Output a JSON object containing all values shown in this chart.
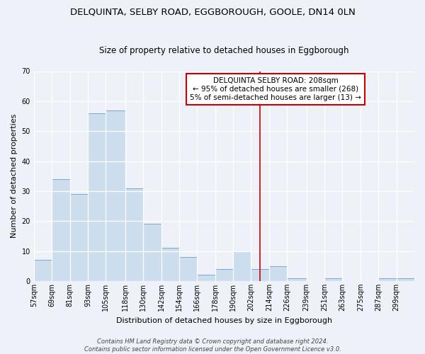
{
  "title": "DELQUINTA, SELBY ROAD, EGGBOROUGH, GOOLE, DN14 0LN",
  "subtitle": "Size of property relative to detached houses in Eggborough",
  "xlabel": "Distribution of detached houses by size in Eggborough",
  "ylabel": "Number of detached properties",
  "bar_labels": [
    "57sqm",
    "69sqm",
    "81sqm",
    "93sqm",
    "105sqm",
    "118sqm",
    "130sqm",
    "142sqm",
    "154sqm",
    "166sqm",
    "178sqm",
    "190sqm",
    "202sqm",
    "214sqm",
    "226sqm",
    "239sqm",
    "251sqm",
    "263sqm",
    "275sqm",
    "287sqm",
    "299sqm"
  ],
  "bar_values": [
    7,
    34,
    29,
    56,
    57,
    31,
    19,
    11,
    8,
    2,
    4,
    10,
    4,
    5,
    1,
    0,
    1,
    0,
    0,
    1,
    1
  ],
  "bin_edges": [
    57,
    69,
    81,
    93,
    105,
    118,
    130,
    142,
    154,
    166,
    178,
    190,
    202,
    214,
    226,
    239,
    251,
    263,
    275,
    287,
    299,
    311
  ],
  "bar_color": "#ccdded",
  "bar_edgecolor": "#7aaac8",
  "vline_x": 208,
  "vline_color": "#cc0000",
  "ylim": [
    0,
    70
  ],
  "yticks": [
    0,
    10,
    20,
    30,
    40,
    50,
    60,
    70
  ],
  "annotation_title": "DELQUINTA SELBY ROAD: 208sqm",
  "annotation_line1": "← 95% of detached houses are smaller (268)",
  "annotation_line2": "5% of semi-detached houses are larger (13) →",
  "annotation_box_edgecolor": "#cc0000",
  "annotation_box_facecolor": "#ffffff",
  "footnote1": "Contains HM Land Registry data © Crown copyright and database right 2024.",
  "footnote2": "Contains public sector information licensed under the Open Government Licence v3.0.",
  "background_color": "#eef2f8",
  "grid_color": "#ffffff",
  "title_fontsize": 9.5,
  "subtitle_fontsize": 8.5,
  "axis_label_fontsize": 8,
  "tick_fontsize": 7,
  "annotation_fontsize": 7.5,
  "footnote_fontsize": 6
}
